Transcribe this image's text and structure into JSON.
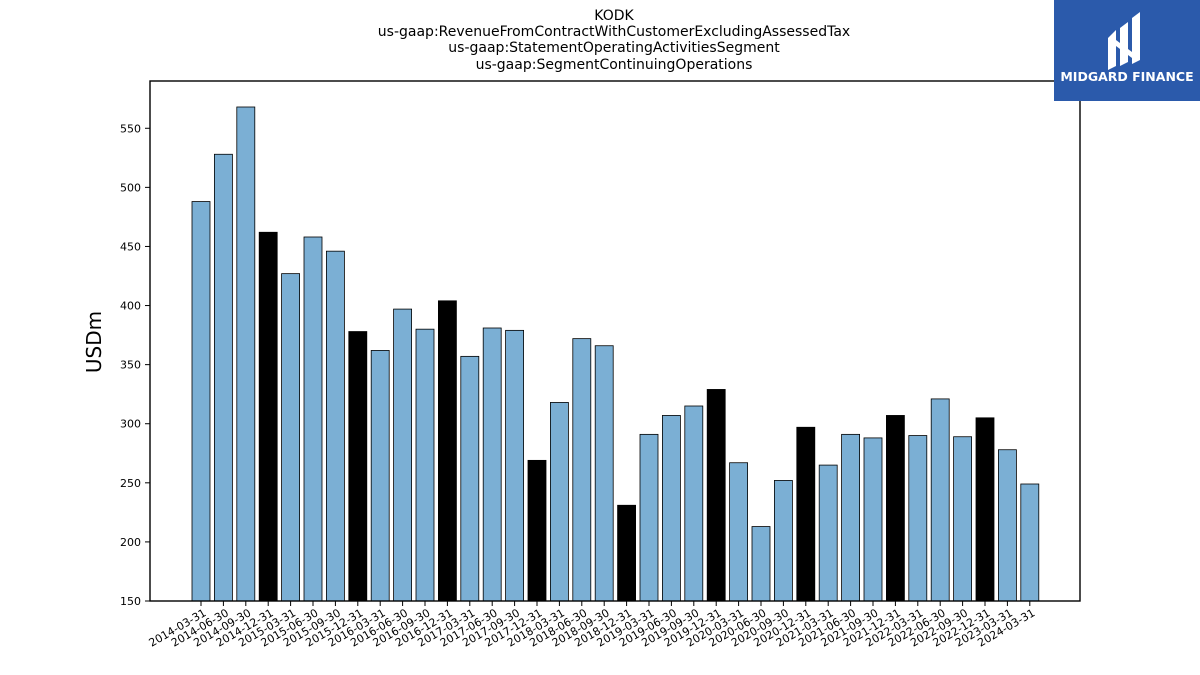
{
  "chart_data": {
    "type": "bar",
    "title_lines": [
      "KODK",
      "us-gaap:RevenueFromContractWithCustomerExcludingAssessedTax",
      "us-gaap:StatementOperatingActivitiesSegment",
      "us-gaap:SegmentContinuingOperations"
    ],
    "ylabel": "USDm",
    "xlabel": "",
    "ylim": [
      150,
      590
    ],
    "yticks": [
      150,
      200,
      250,
      300,
      350,
      400,
      450,
      500,
      550
    ],
    "grid": false,
    "categories": [
      "2014-03-31",
      "2014-06-30",
      "2014-09-30",
      "2014-12-31",
      "2015-03-31",
      "2015-06-30",
      "2015-09-30",
      "2015-12-31",
      "2016-03-31",
      "2016-06-30",
      "2016-09-30",
      "2016-12-31",
      "2017-03-31",
      "2017-06-30",
      "2017-09-30",
      "2017-12-31",
      "2018-03-31",
      "2018-06-30",
      "2018-09-30",
      "2018-12-31",
      "2019-03-31",
      "2019-06-30",
      "2019-09-30",
      "2019-12-31",
      "2020-03-31",
      "2020-06-30",
      "2020-09-30",
      "2020-12-31",
      "2021-03-31",
      "2021-06-30",
      "2021-09-30",
      "2021-12-31",
      "2022-03-31",
      "2022-06-30",
      "2022-09-30",
      "2022-12-31",
      "2023-03-31",
      "2024-03-31"
    ],
    "values": [
      488,
      528,
      568,
      462,
      427,
      458,
      446,
      378,
      362,
      397,
      380,
      404,
      357,
      381,
      379,
      269,
      318,
      372,
      366,
      231,
      291,
      307,
      315,
      329,
      267,
      213,
      252,
      297,
      265,
      291,
      288,
      307,
      290,
      321,
      289,
      305,
      278,
      249
    ],
    "colors": {
      "quarter": "#7bafd4",
      "year_end": "#000000",
      "edge": "#000000"
    },
    "year_end_flags": [
      false,
      false,
      false,
      true,
      false,
      false,
      false,
      true,
      false,
      false,
      false,
      true,
      false,
      false,
      false,
      true,
      false,
      false,
      false,
      true,
      false,
      false,
      false,
      true,
      false,
      false,
      false,
      true,
      false,
      false,
      false,
      true,
      false,
      false,
      false,
      true,
      false,
      false
    ]
  },
  "logo": {
    "text": "MIDGARD FINANCE",
    "background": "#2b5aab"
  }
}
